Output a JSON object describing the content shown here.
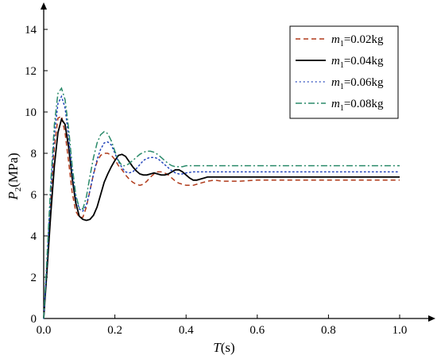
{
  "chart_data": {
    "type": "line",
    "title": "",
    "xlabel": "T(s)",
    "ylabel": "P2(MPa)",
    "xlim": [
      0.0,
      1.0
    ],
    "ylim": [
      0,
      14
    ],
    "x_ticks": [
      0.0,
      0.2,
      0.4,
      0.6,
      0.8,
      1.0
    ],
    "y_ticks": [
      0,
      2,
      4,
      6,
      8,
      10,
      12,
      14
    ],
    "x_tick_labels": [
      "0.0",
      "0.2",
      "0.4",
      "0.6",
      "0.8",
      "1.0"
    ],
    "y_tick_labels": [
      "0",
      "2",
      "4",
      "6",
      "8",
      "10",
      "12",
      "14"
    ],
    "legend_position": "top-right",
    "grid": false,
    "series": [
      {
        "name": "m1=0.02kg",
        "color": "#b03a1a",
        "style": "dashed",
        "x": [
          0.0,
          0.01,
          0.02,
          0.03,
          0.04,
          0.05,
          0.06,
          0.07,
          0.08,
          0.09,
          0.1,
          0.11,
          0.12,
          0.13,
          0.14,
          0.15,
          0.16,
          0.17,
          0.18,
          0.19,
          0.2,
          0.21,
          0.22,
          0.23,
          0.24,
          0.25,
          0.26,
          0.27,
          0.28,
          0.29,
          0.3,
          0.31,
          0.32,
          0.33,
          0.34,
          0.35,
          0.36,
          0.37,
          0.38,
          0.39,
          0.4,
          0.42,
          0.44,
          0.46,
          0.48,
          0.5,
          0.55,
          0.6,
          0.7,
          0.8,
          0.9,
          1.0
        ],
        "y": [
          0.0,
          2.8,
          5.8,
          8.3,
          9.7,
          9.8,
          9.0,
          7.6,
          6.1,
          5.2,
          4.9,
          4.9,
          5.4,
          6.2,
          7.0,
          7.6,
          7.9,
          8.0,
          8.0,
          7.9,
          7.7,
          7.4,
          7.2,
          6.95,
          6.75,
          6.6,
          6.5,
          6.45,
          6.5,
          6.65,
          6.85,
          7.0,
          7.1,
          7.1,
          7.05,
          6.95,
          6.8,
          6.65,
          6.55,
          6.5,
          6.45,
          6.45,
          6.55,
          6.65,
          6.7,
          6.65,
          6.65,
          6.7,
          6.7,
          6.7,
          6.7,
          6.7
        ]
      },
      {
        "name": "m1=0.04kg",
        "color": "#000000",
        "style": "solid",
        "x": [
          0.0,
          0.01,
          0.02,
          0.03,
          0.04,
          0.05,
          0.06,
          0.07,
          0.08,
          0.09,
          0.1,
          0.11,
          0.12,
          0.13,
          0.14,
          0.15,
          0.16,
          0.17,
          0.18,
          0.19,
          0.2,
          0.21,
          0.22,
          0.23,
          0.24,
          0.25,
          0.26,
          0.27,
          0.28,
          0.29,
          0.3,
          0.31,
          0.32,
          0.33,
          0.34,
          0.35,
          0.36,
          0.37,
          0.38,
          0.39,
          0.4,
          0.41,
          0.42,
          0.43,
          0.44,
          0.45,
          0.46,
          0.48,
          0.5,
          0.6,
          0.7,
          0.8,
          0.9,
          1.0
        ],
        "y": [
          0.0,
          2.5,
          5.1,
          7.4,
          9.0,
          9.65,
          9.4,
          8.3,
          6.8,
          5.6,
          4.95,
          4.8,
          4.75,
          4.8,
          5.0,
          5.4,
          6.0,
          6.6,
          7.0,
          7.35,
          7.65,
          7.9,
          7.95,
          7.85,
          7.6,
          7.35,
          7.15,
          7.0,
          6.95,
          6.95,
          7.0,
          7.05,
          7.0,
          6.95,
          6.95,
          7.0,
          7.1,
          7.2,
          7.2,
          7.1,
          6.95,
          6.8,
          6.7,
          6.7,
          6.75,
          6.8,
          6.85,
          6.85,
          6.85,
          6.85,
          6.85,
          6.85,
          6.85,
          6.85
        ]
      },
      {
        "name": "m1=0.06kg",
        "color": "#2244bb",
        "style": "dotted",
        "x": [
          0.0,
          0.01,
          0.02,
          0.03,
          0.04,
          0.05,
          0.06,
          0.07,
          0.08,
          0.09,
          0.1,
          0.11,
          0.12,
          0.13,
          0.14,
          0.15,
          0.16,
          0.17,
          0.18,
          0.19,
          0.2,
          0.21,
          0.22,
          0.23,
          0.24,
          0.25,
          0.26,
          0.27,
          0.28,
          0.29,
          0.3,
          0.31,
          0.32,
          0.33,
          0.34,
          0.35,
          0.36,
          0.37,
          0.38,
          0.39,
          0.4,
          0.42,
          0.44,
          0.46,
          0.5,
          0.6,
          0.7,
          0.8,
          0.9,
          1.0
        ],
        "y": [
          0.0,
          3.0,
          6.2,
          8.9,
          10.4,
          10.75,
          10.2,
          8.8,
          7.1,
          5.9,
          5.3,
          5.2,
          5.5,
          6.2,
          7.0,
          7.7,
          8.2,
          8.5,
          8.55,
          8.4,
          8.0,
          7.6,
          7.3,
          7.1,
          7.05,
          7.1,
          7.25,
          7.45,
          7.65,
          7.75,
          7.8,
          7.8,
          7.75,
          7.6,
          7.45,
          7.3,
          7.15,
          7.05,
          7.0,
          7.0,
          7.05,
          7.1,
          7.1,
          7.1,
          7.1,
          7.1,
          7.1,
          7.1,
          7.1,
          7.1
        ]
      },
      {
        "name": "m1=0.08kg",
        "color": "#2a8a6a",
        "style": "dashdot",
        "x": [
          0.0,
          0.01,
          0.02,
          0.03,
          0.04,
          0.05,
          0.06,
          0.07,
          0.08,
          0.09,
          0.1,
          0.11,
          0.12,
          0.13,
          0.14,
          0.15,
          0.16,
          0.17,
          0.18,
          0.19,
          0.2,
          0.21,
          0.22,
          0.23,
          0.24,
          0.25,
          0.26,
          0.27,
          0.28,
          0.29,
          0.3,
          0.31,
          0.32,
          0.33,
          0.34,
          0.35,
          0.36,
          0.37,
          0.38,
          0.39,
          0.4,
          0.42,
          0.44,
          0.46,
          0.5,
          0.6,
          0.7,
          0.8,
          0.9,
          1.0
        ],
        "y": [
          0.0,
          3.2,
          6.6,
          9.4,
          10.9,
          11.15,
          10.6,
          9.2,
          7.4,
          6.0,
          5.35,
          5.3,
          5.9,
          6.9,
          7.8,
          8.5,
          8.9,
          9.05,
          8.95,
          8.6,
          8.1,
          7.65,
          7.4,
          7.4,
          7.5,
          7.65,
          7.8,
          7.95,
          8.05,
          8.1,
          8.1,
          8.05,
          7.95,
          7.8,
          7.65,
          7.5,
          7.4,
          7.35,
          7.35,
          7.35,
          7.4,
          7.4,
          7.4,
          7.4,
          7.4,
          7.4,
          7.4,
          7.4,
          7.4,
          7.4
        ]
      }
    ],
    "legend": [
      {
        "prefix": "m",
        "sub": "1",
        "suffix": "=0.02kg"
      },
      {
        "prefix": "m",
        "sub": "1",
        "suffix": "=0.04kg"
      },
      {
        "prefix": "m",
        "sub": "1",
        "suffix": "=0.06kg"
      },
      {
        "prefix": "m",
        "sub": "1",
        "suffix": "=0.08kg"
      }
    ],
    "ylabel_parts": {
      "italic": "P",
      "sub": "2",
      "rest": "(MPa)"
    },
    "xlabel_parts": {
      "italic": "T",
      "rest": "(s)"
    }
  }
}
